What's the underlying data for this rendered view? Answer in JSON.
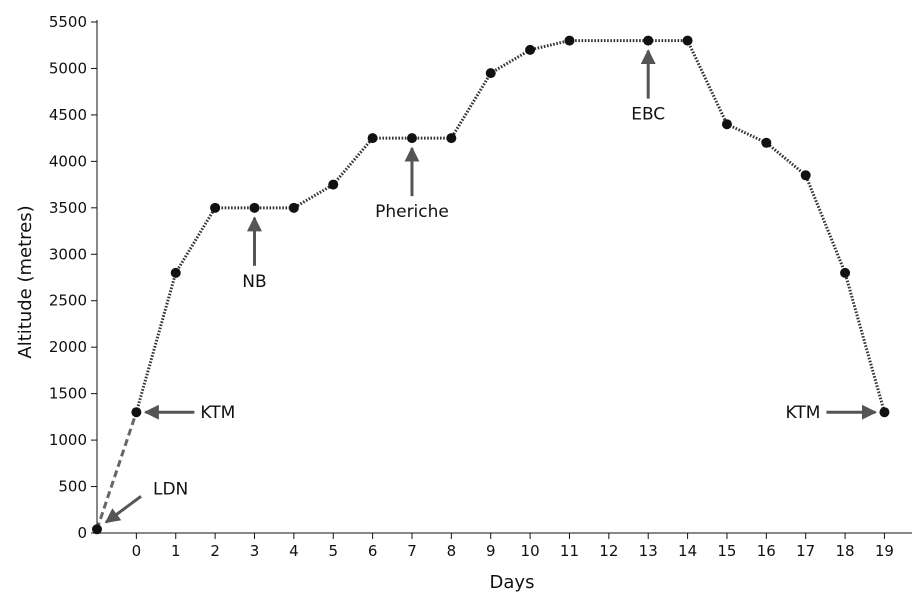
{
  "chart_data": {
    "type": "line",
    "title": "",
    "xlabel": "Days",
    "ylabel": "Altitude (metres)",
    "xlim": [
      -1,
      19.7
    ],
    "ylim": [
      0,
      5500
    ],
    "x_ticks": [
      0,
      1,
      2,
      3,
      4,
      5,
      6,
      7,
      8,
      9,
      10,
      11,
      12,
      13,
      14,
      15,
      16,
      17,
      18,
      19
    ],
    "y_ticks": [
      0,
      500,
      1000,
      1500,
      2000,
      2500,
      3000,
      3500,
      4000,
      4500,
      5000,
      5500
    ],
    "grid": false,
    "legend": "none",
    "colors": {
      "points": "#111111",
      "line": "#333333",
      "arrows": "#555555",
      "axes": "#111111"
    },
    "flight_segment": {
      "style": "dashed",
      "points": [
        {
          "x": -1,
          "y": 40
        },
        {
          "x": 0,
          "y": 1300
        }
      ]
    },
    "trek_series": {
      "style": "dotted",
      "points": [
        {
          "x": 0,
          "y": 1300
        },
        {
          "x": 1,
          "y": 2800
        },
        {
          "x": 2,
          "y": 3500
        },
        {
          "x": 3,
          "y": 3500
        },
        {
          "x": 4,
          "y": 3500
        },
        {
          "x": 5,
          "y": 3750
        },
        {
          "x": 6,
          "y": 4250
        },
        {
          "x": 7,
          "y": 4250
        },
        {
          "x": 8,
          "y": 4250
        },
        {
          "x": 9,
          "y": 4950
        },
        {
          "x": 10,
          "y": 5200
        },
        {
          "x": 11,
          "y": 5300
        },
        {
          "x": 13,
          "y": 5300
        },
        {
          "x": 14,
          "y": 5300
        },
        {
          "x": 15,
          "y": 4400
        },
        {
          "x": 16,
          "y": 4200
        },
        {
          "x": 17,
          "y": 3850
        },
        {
          "x": 18,
          "y": 2800
        },
        {
          "x": 19,
          "y": 1300
        }
      ]
    },
    "annotations": [
      {
        "label": "LDN",
        "point": {
          "x": -1,
          "y": 40
        },
        "arrow_from": "upper-right"
      },
      {
        "label": "KTM",
        "point": {
          "x": 0,
          "y": 1300
        },
        "arrow_from": "right"
      },
      {
        "label": "NB",
        "point": {
          "x": 3,
          "y": 3500
        },
        "arrow_from": "below"
      },
      {
        "label": "Pheriche",
        "point": {
          "x": 7,
          "y": 4250
        },
        "arrow_from": "below"
      },
      {
        "label": "EBC",
        "point": {
          "x": 13,
          "y": 5300
        },
        "arrow_from": "below"
      },
      {
        "label": "KTM",
        "point": {
          "x": 19,
          "y": 1300
        },
        "arrow_from": "left"
      }
    ]
  }
}
